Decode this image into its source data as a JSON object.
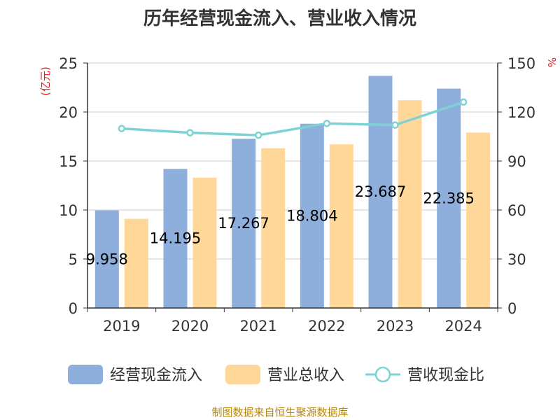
{
  "title": "历年经营现金流入、营业收入情况",
  "source": "制图数据来自恒生聚源数据库",
  "colors": {
    "cash": "#8eaedc",
    "revenue": "#ffd899",
    "ratio": "#7dd3d3",
    "unit": "#e02020",
    "axis": "#333333",
    "grid": "#cccccc"
  },
  "chart_data": {
    "type": "bar",
    "categories": [
      "2019",
      "2020",
      "2021",
      "2022",
      "2023",
      "2024"
    ],
    "series": [
      {
        "name": "经营现金流入",
        "type": "bar",
        "axis": "left",
        "values": [
          9.958,
          14.195,
          17.267,
          18.804,
          23.687,
          22.385
        ],
        "labels": [
          "9.958",
          "14.195",
          "17.267",
          "18.804",
          "23.687",
          "22.385"
        ]
      },
      {
        "name": "营业总收入",
        "type": "bar",
        "axis": "left",
        "values": [
          9.1,
          13.3,
          16.3,
          16.7,
          21.2,
          17.9
        ]
      },
      {
        "name": "营收现金比",
        "type": "line",
        "axis": "right",
        "values": [
          109.9,
          107.3,
          105.8,
          113.0,
          112.0,
          126.1
        ]
      }
    ],
    "ylabel": "(亿元)",
    "y2label": "%",
    "ylim": [
      0,
      25
    ],
    "y2lim": [
      0,
      150
    ],
    "yticks": [
      "0",
      "5",
      "10",
      "15",
      "20",
      "25"
    ],
    "y2ticks": [
      "0",
      "30",
      "60",
      "90",
      "120",
      "150"
    ],
    "grid": true,
    "legend": "bottom"
  }
}
